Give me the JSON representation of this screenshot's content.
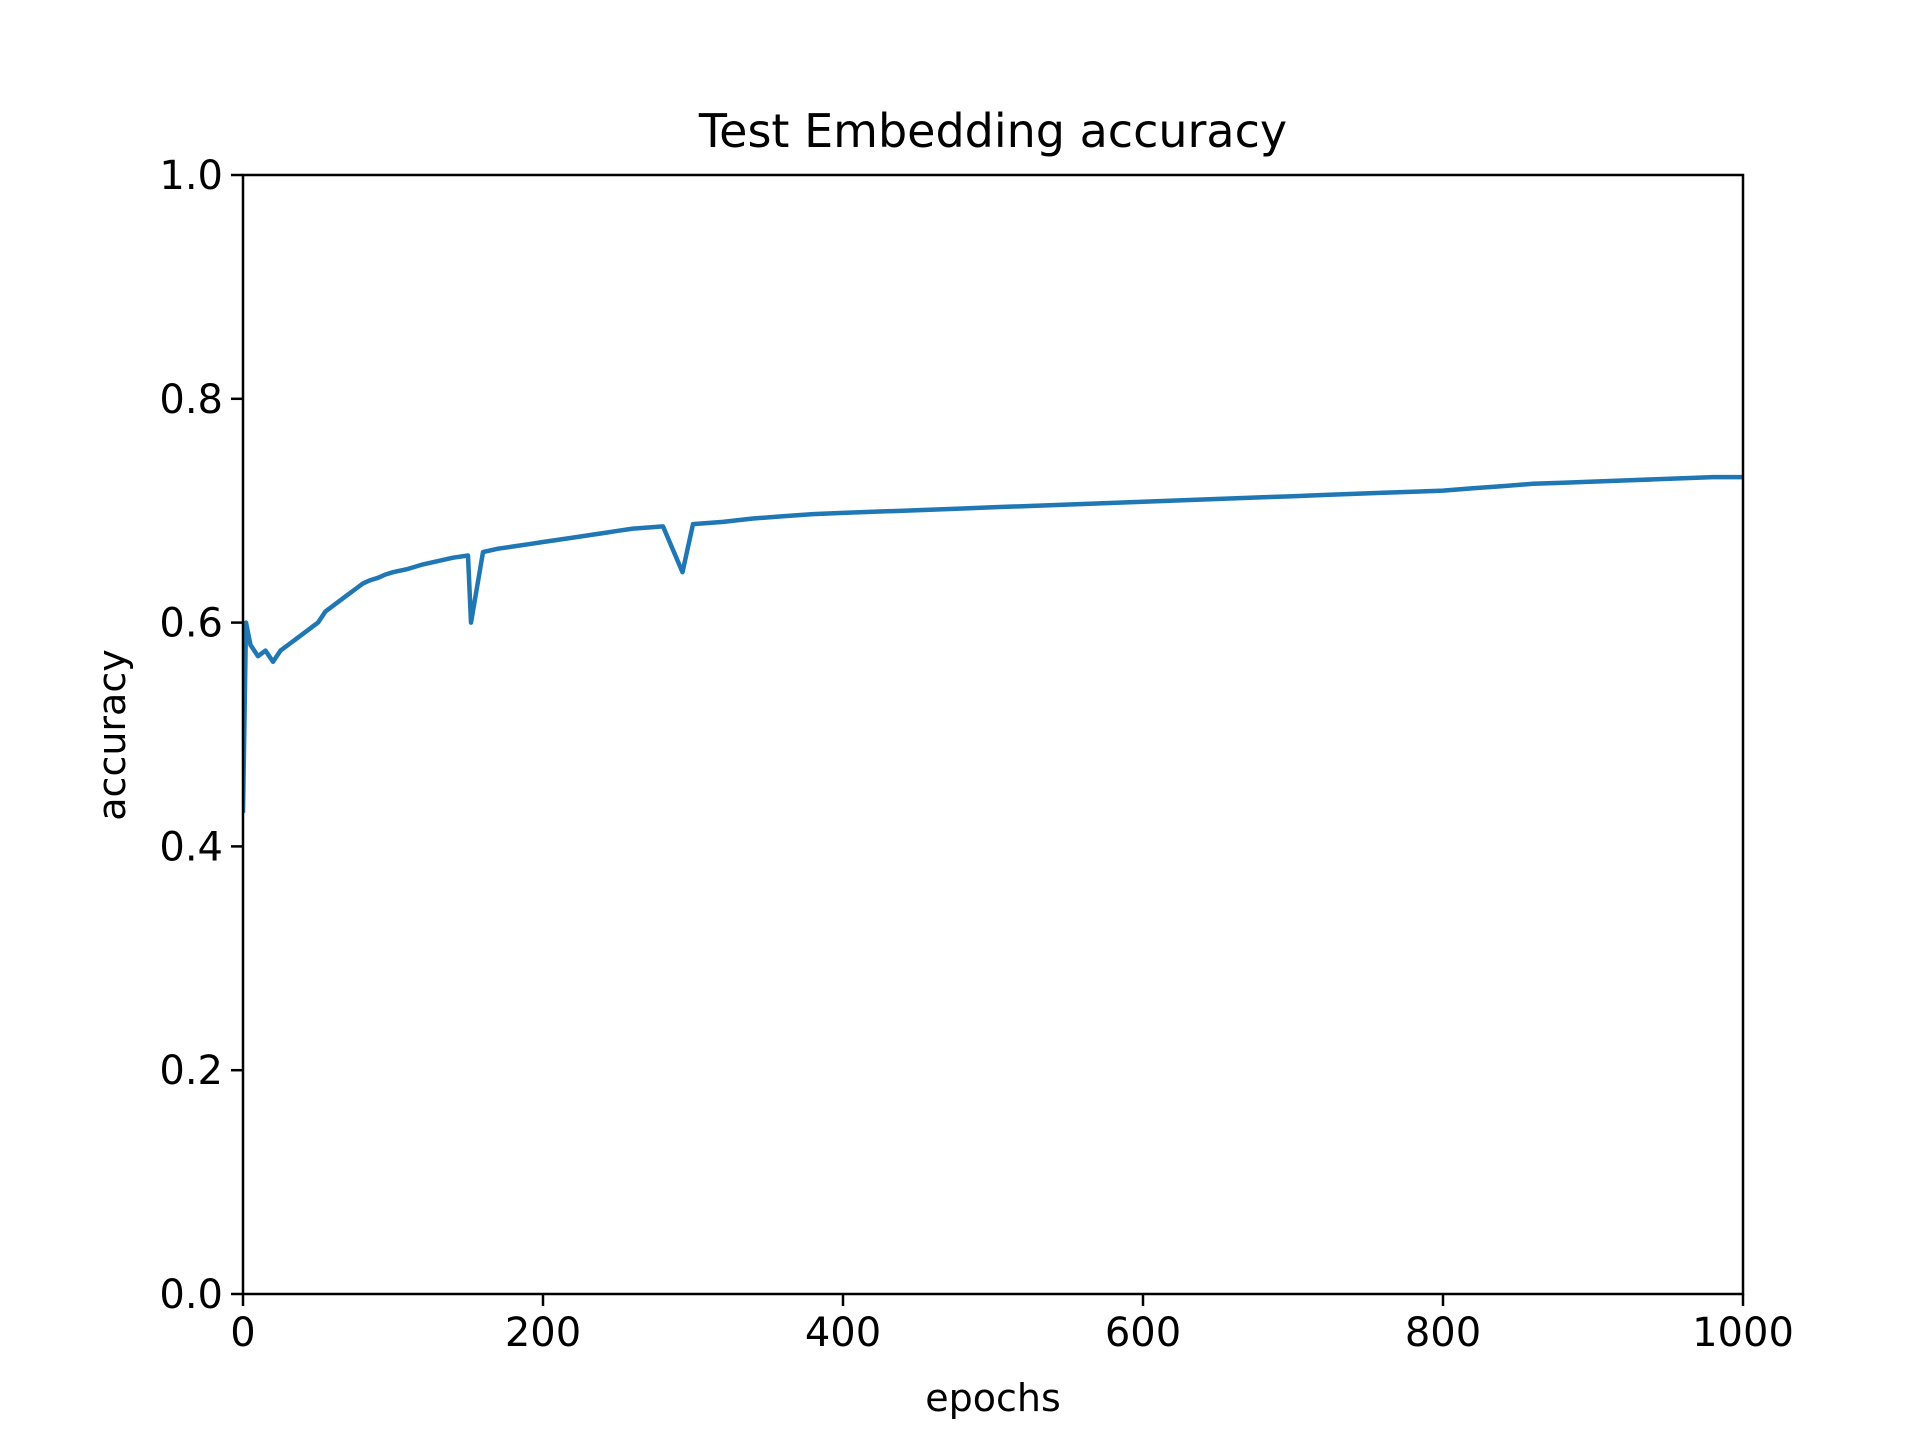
{
  "chart_data": {
    "type": "line",
    "title": "Test Embedding accuracy",
    "xlabel": "epochs",
    "ylabel": "accuracy",
    "xlim": [
      0,
      1000
    ],
    "ylim": [
      0.0,
      1.0
    ],
    "xticks": [
      0,
      200,
      400,
      600,
      800,
      1000
    ],
    "xtick_labels": [
      "0",
      "200",
      "400",
      "600",
      "800",
      "1000"
    ],
    "yticks": [
      0.0,
      0.2,
      0.4,
      0.6,
      0.8,
      1.0
    ],
    "ytick_labels": [
      "0.0",
      "0.2",
      "0.4",
      "0.6",
      "0.8",
      "1.0"
    ],
    "grid": false,
    "legend": "none",
    "line_color": "#1f77b4",
    "series": [
      {
        "x": [
          0,
          2,
          5,
          10,
          15,
          20,
          25,
          30,
          35,
          40,
          45,
          50,
          55,
          60,
          65,
          70,
          75,
          80,
          85,
          90,
          95,
          100,
          110,
          120,
          130,
          140,
          150,
          152,
          160,
          170,
          180,
          190,
          200,
          220,
          240,
          250,
          260,
          280,
          293,
          300,
          320,
          340,
          360,
          380,
          400,
          420,
          440,
          460,
          480,
          500,
          520,
          540,
          560,
          580,
          600,
          620,
          640,
          660,
          680,
          700,
          720,
          740,
          760,
          780,
          800,
          820,
          840,
          860,
          880,
          900,
          920,
          940,
          960,
          980,
          1000
        ],
        "y": [
          0.43,
          0.6,
          0.58,
          0.57,
          0.575,
          0.565,
          0.575,
          0.58,
          0.585,
          0.59,
          0.595,
          0.6,
          0.61,
          0.615,
          0.62,
          0.625,
          0.63,
          0.635,
          0.638,
          0.64,
          0.643,
          0.645,
          0.648,
          0.652,
          0.655,
          0.658,
          0.66,
          0.6,
          0.663,
          0.666,
          0.668,
          0.67,
          0.672,
          0.676,
          0.68,
          0.682,
          0.684,
          0.686,
          0.645,
          0.688,
          0.69,
          0.693,
          0.695,
          0.697,
          0.698,
          0.699,
          0.7,
          0.701,
          0.702,
          0.703,
          0.704,
          0.705,
          0.706,
          0.707,
          0.708,
          0.709,
          0.71,
          0.711,
          0.712,
          0.713,
          0.714,
          0.715,
          0.716,
          0.717,
          0.718,
          0.72,
          0.722,
          0.724,
          0.725,
          0.726,
          0.727,
          0.728,
          0.729,
          0.73,
          0.73
        ]
      }
    ]
  }
}
